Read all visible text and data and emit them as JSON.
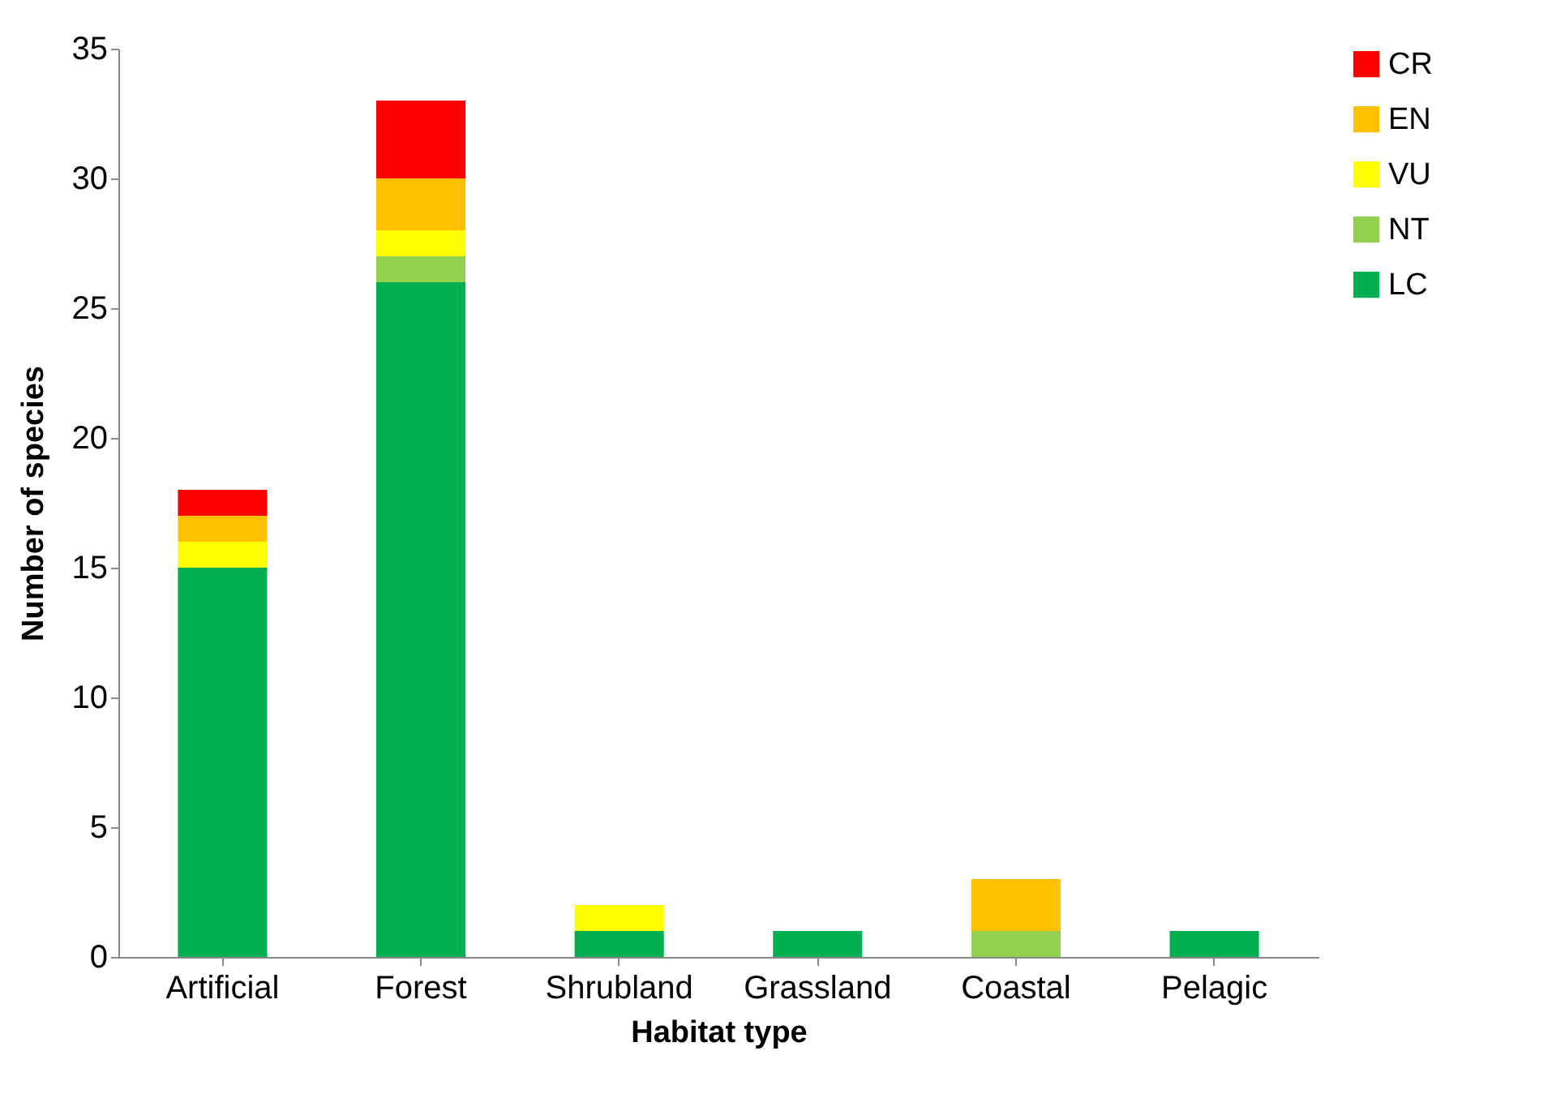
{
  "chart_data": {
    "type": "bar",
    "stacked": true,
    "xlabel": "Habitat type",
    "ylabel": "Number of species",
    "categories": [
      "Artificial",
      "Forest",
      "Shrubland",
      "Grassland",
      "Coastal",
      "Pelagic"
    ],
    "series": [
      {
        "name": "LC",
        "color": "#00b050",
        "values": [
          15,
          26,
          1,
          1,
          0,
          1
        ]
      },
      {
        "name": "NT",
        "color": "#92d050",
        "values": [
          0,
          1,
          0,
          0,
          1,
          0
        ]
      },
      {
        "name": "VU",
        "color": "#ffff00",
        "values": [
          1,
          1,
          1,
          0,
          0,
          0
        ]
      },
      {
        "name": "EN",
        "color": "#ffc000",
        "values": [
          1,
          2,
          0,
          0,
          2,
          0
        ]
      },
      {
        "name": "CR",
        "color": "#ff0000",
        "values": [
          1,
          3,
          0,
          0,
          0,
          0
        ]
      }
    ],
    "ylim": [
      0,
      35
    ],
    "yticks": [
      0,
      5,
      10,
      15,
      20,
      25,
      30,
      35
    ],
    "grid": false,
    "legend": "right"
  }
}
